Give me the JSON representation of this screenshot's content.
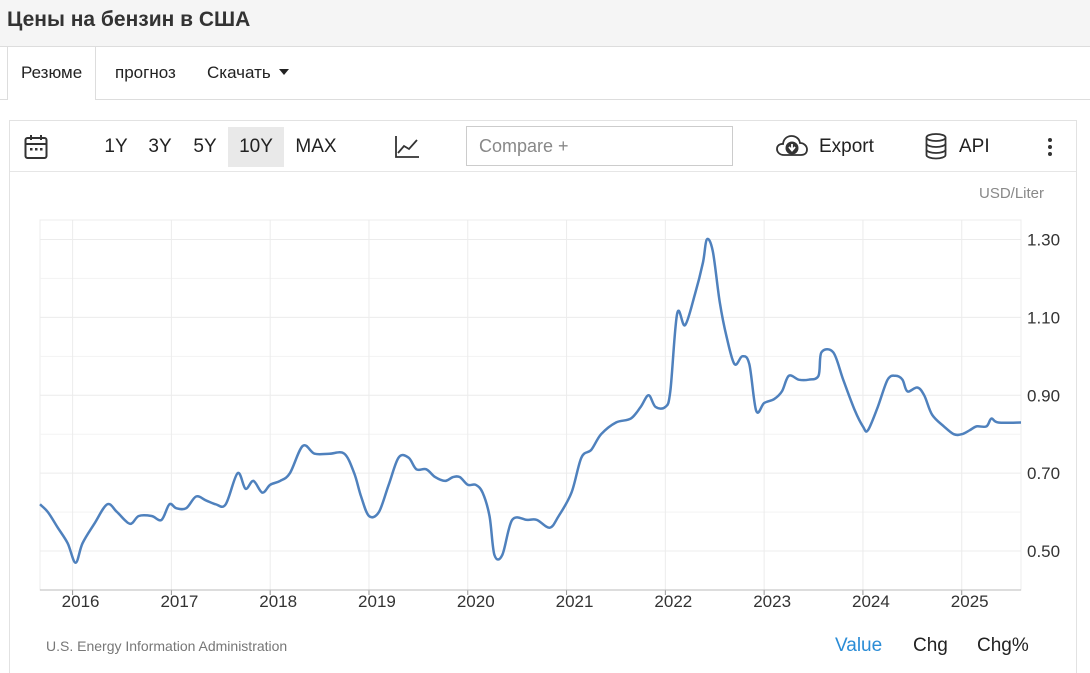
{
  "page": {
    "title": "Цены на бензин в США"
  },
  "tabs": [
    {
      "label": "Резюме"
    },
    {
      "label": "прогноз"
    },
    {
      "label": "Скачать"
    }
  ],
  "toolbar": {
    "calendar_icon": "calendar-icon",
    "ranges": [
      "1Y",
      "3Y",
      "5Y",
      "10Y",
      "MAX"
    ],
    "active_range": "10Y",
    "chart_type_icon": "line-chart-icon",
    "compare_placeholder": "Compare +",
    "export_label": "Export",
    "export_icon": "cloud-download-icon",
    "api_label": "API",
    "api_icon": "database-icon",
    "more_icon": "more-vertical-icon"
  },
  "footer": {
    "source": "U.S. Energy Information Administration",
    "metrics": [
      "Value",
      "Chg",
      "Chg%"
    ],
    "active_metric": "Value"
  },
  "colors": {
    "line": "#4f81bd",
    "accent": "#2a8cd6",
    "grid": "#ececec"
  },
  "chart_data": {
    "type": "line",
    "unit": "USD/Liter",
    "x_ticks": [
      "2016",
      "2017",
      "2018",
      "2019",
      "2020",
      "2021",
      "2022",
      "2023",
      "2024",
      "2025"
    ],
    "y_ticks": [
      "0.50",
      "0.70",
      "0.90",
      "1.10",
      "1.30"
    ],
    "ylim": [
      0.4,
      1.35
    ],
    "xlim": [
      2015.67,
      2025.6
    ],
    "grid": true,
    "series": [
      {
        "values": [
          [
            2015.67,
            0.62
          ],
          [
            2015.75,
            0.6
          ],
          [
            2015.85,
            0.56
          ],
          [
            2015.95,
            0.52
          ],
          [
            2016.03,
            0.47
          ],
          [
            2016.1,
            0.52
          ],
          [
            2016.22,
            0.57
          ],
          [
            2016.35,
            0.62
          ],
          [
            2016.45,
            0.6
          ],
          [
            2016.58,
            0.57
          ],
          [
            2016.67,
            0.59
          ],
          [
            2016.8,
            0.59
          ],
          [
            2016.9,
            0.58
          ],
          [
            2016.98,
            0.62
          ],
          [
            2017.05,
            0.61
          ],
          [
            2017.15,
            0.61
          ],
          [
            2017.25,
            0.64
          ],
          [
            2017.35,
            0.63
          ],
          [
            2017.45,
            0.62
          ],
          [
            2017.55,
            0.62
          ],
          [
            2017.67,
            0.7
          ],
          [
            2017.75,
            0.66
          ],
          [
            2017.83,
            0.68
          ],
          [
            2017.92,
            0.65
          ],
          [
            2018.0,
            0.67
          ],
          [
            2018.1,
            0.68
          ],
          [
            2018.2,
            0.7
          ],
          [
            2018.33,
            0.77
          ],
          [
            2018.45,
            0.75
          ],
          [
            2018.6,
            0.75
          ],
          [
            2018.75,
            0.75
          ],
          [
            2018.85,
            0.7
          ],
          [
            2018.92,
            0.64
          ],
          [
            2019.0,
            0.59
          ],
          [
            2019.1,
            0.6
          ],
          [
            2019.2,
            0.67
          ],
          [
            2019.3,
            0.74
          ],
          [
            2019.4,
            0.74
          ],
          [
            2019.48,
            0.71
          ],
          [
            2019.58,
            0.71
          ],
          [
            2019.67,
            0.69
          ],
          [
            2019.77,
            0.68
          ],
          [
            2019.85,
            0.69
          ],
          [
            2019.92,
            0.69
          ],
          [
            2020.0,
            0.67
          ],
          [
            2020.08,
            0.67
          ],
          [
            2020.15,
            0.65
          ],
          [
            2020.22,
            0.59
          ],
          [
            2020.27,
            0.49
          ],
          [
            2020.35,
            0.49
          ],
          [
            2020.45,
            0.58
          ],
          [
            2020.6,
            0.58
          ],
          [
            2020.7,
            0.58
          ],
          [
            2020.83,
            0.56
          ],
          [
            2020.92,
            0.59
          ],
          [
            2021.05,
            0.65
          ],
          [
            2021.15,
            0.74
          ],
          [
            2021.25,
            0.76
          ],
          [
            2021.35,
            0.8
          ],
          [
            2021.5,
            0.83
          ],
          [
            2021.65,
            0.84
          ],
          [
            2021.75,
            0.87
          ],
          [
            2021.83,
            0.9
          ],
          [
            2021.9,
            0.87
          ],
          [
            2022.0,
            0.87
          ],
          [
            2022.05,
            0.91
          ],
          [
            2022.12,
            1.11
          ],
          [
            2022.2,
            1.08
          ],
          [
            2022.3,
            1.16
          ],
          [
            2022.38,
            1.24
          ],
          [
            2022.42,
            1.3
          ],
          [
            2022.48,
            1.27
          ],
          [
            2022.55,
            1.14
          ],
          [
            2022.62,
            1.05
          ],
          [
            2022.7,
            0.98
          ],
          [
            2022.78,
            1.0
          ],
          [
            2022.85,
            0.98
          ],
          [
            2022.92,
            0.86
          ],
          [
            2023.0,
            0.88
          ],
          [
            2023.1,
            0.89
          ],
          [
            2023.18,
            0.91
          ],
          [
            2023.25,
            0.95
          ],
          [
            2023.35,
            0.94
          ],
          [
            2023.45,
            0.94
          ],
          [
            2023.55,
            0.95
          ],
          [
            2023.58,
            1.01
          ],
          [
            2023.7,
            1.01
          ],
          [
            2023.8,
            0.94
          ],
          [
            2023.92,
            0.86
          ],
          [
            2024.0,
            0.82
          ],
          [
            2024.05,
            0.81
          ],
          [
            2024.15,
            0.87
          ],
          [
            2024.25,
            0.94
          ],
          [
            2024.33,
            0.95
          ],
          [
            2024.4,
            0.94
          ],
          [
            2024.45,
            0.91
          ],
          [
            2024.55,
            0.92
          ],
          [
            2024.62,
            0.9
          ],
          [
            2024.7,
            0.85
          ],
          [
            2024.82,
            0.82
          ],
          [
            2024.92,
            0.8
          ],
          [
            2025.0,
            0.8
          ],
          [
            2025.08,
            0.81
          ],
          [
            2025.15,
            0.82
          ],
          [
            2025.25,
            0.82
          ],
          [
            2025.3,
            0.84
          ],
          [
            2025.37,
            0.83
          ],
          [
            2025.6,
            0.83
          ]
        ]
      }
    ]
  }
}
